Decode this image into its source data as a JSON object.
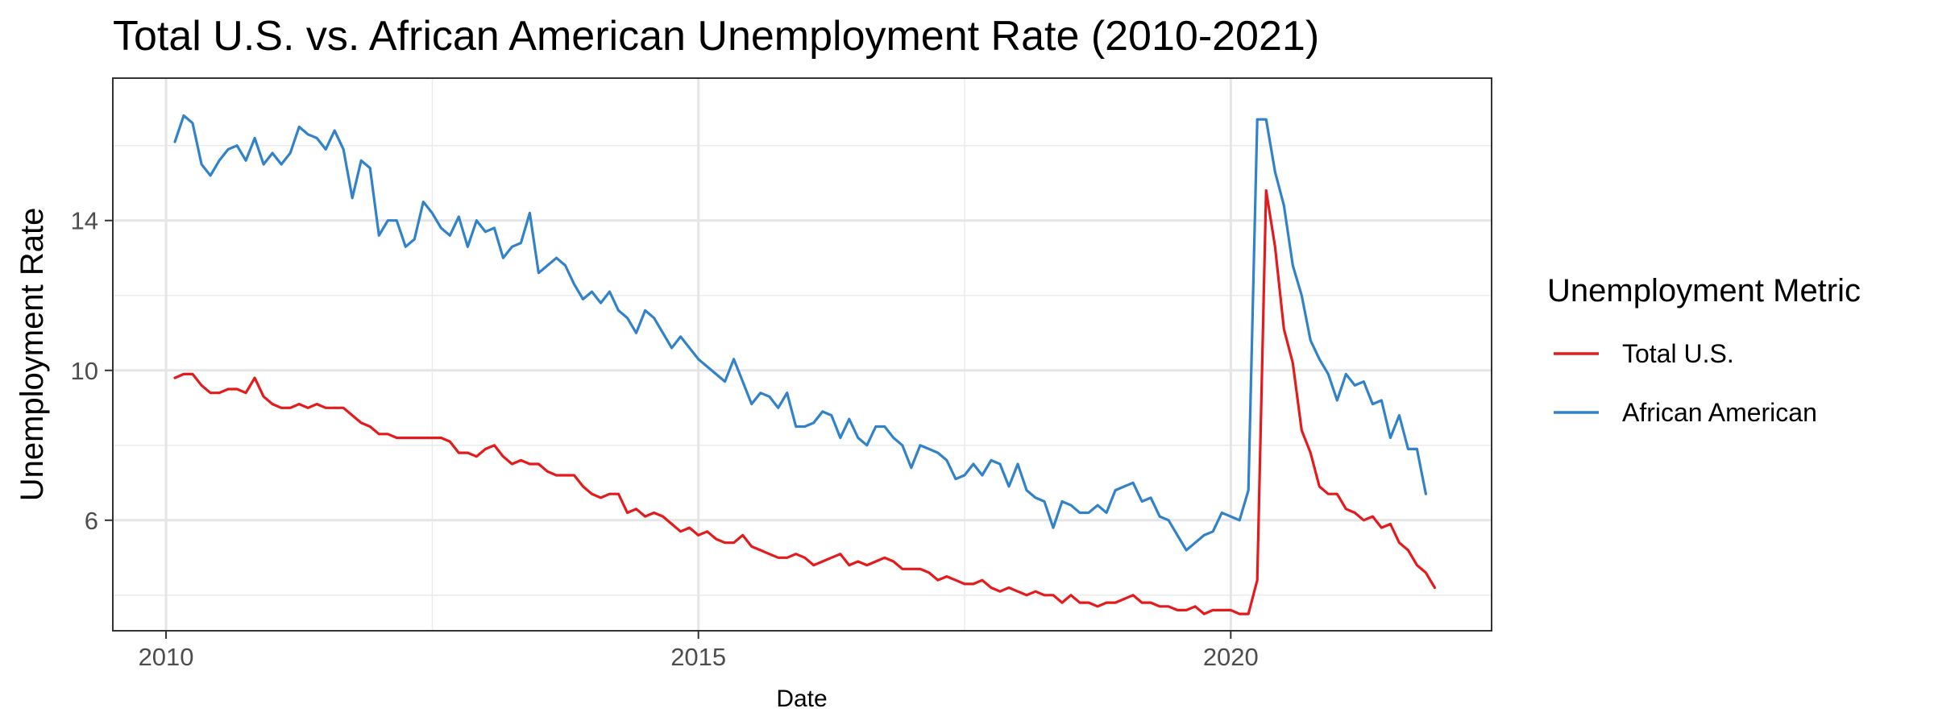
{
  "chart_data": {
    "type": "line",
    "title": "Total U.S. vs. African American Unemployment Rate (2010-2021)",
    "xlabel": "Date",
    "ylabel": "Unemployment Rate",
    "xlim": [
      2009.5,
      2022.45
    ],
    "ylim": [
      3.05,
      17.8
    ],
    "x_ticks": [
      2010,
      2015,
      2020
    ],
    "x_tick_labels": [
      "2010",
      "2015",
      "2020"
    ],
    "x_minor_ticks": [
      2012.5,
      2017.5
    ],
    "y_ticks": [
      6,
      10,
      14
    ],
    "y_tick_labels": [
      "6",
      "10",
      "14"
    ],
    "y_minor_ticks": [
      4,
      8,
      12,
      16
    ],
    "grid": true,
    "legend": {
      "title": "Unemployment Metric",
      "position": "right",
      "entries": [
        "Total U.S.",
        "African American"
      ]
    },
    "x_start": 2010.083,
    "x_step": 0.08333,
    "series": [
      {
        "name": "Total U.S.",
        "color": "#E41A1C",
        "values": [
          9.8,
          9.9,
          9.9,
          9.6,
          9.4,
          9.4,
          9.5,
          9.5,
          9.4,
          9.8,
          9.3,
          9.1,
          9.0,
          9.0,
          9.1,
          9.0,
          9.1,
          9.0,
          9.0,
          9.0,
          8.8,
          8.6,
          8.5,
          8.3,
          8.3,
          8.2,
          8.2,
          8.2,
          8.2,
          8.2,
          8.2,
          8.1,
          7.8,
          7.8,
          7.7,
          7.9,
          8.0,
          7.7,
          7.5,
          7.6,
          7.5,
          7.5,
          7.3,
          7.2,
          7.2,
          7.2,
          6.9,
          6.7,
          6.6,
          6.7,
          6.7,
          6.2,
          6.3,
          6.1,
          6.2,
          6.1,
          5.9,
          5.7,
          5.8,
          5.6,
          5.7,
          5.5,
          5.4,
          5.4,
          5.6,
          5.3,
          5.2,
          5.1,
          5.0,
          5.0,
          5.1,
          5.0,
          4.8,
          4.9,
          5.0,
          5.1,
          4.8,
          4.9,
          4.8,
          4.9,
          5.0,
          4.9,
          4.7,
          4.7,
          4.7,
          4.6,
          4.4,
          4.5,
          4.4,
          4.3,
          4.3,
          4.4,
          4.2,
          4.1,
          4.2,
          4.1,
          4.0,
          4.1,
          4.0,
          4.0,
          3.8,
          4.0,
          3.8,
          3.8,
          3.7,
          3.8,
          3.8,
          3.9,
          4.0,
          3.8,
          3.8,
          3.7,
          3.7,
          3.6,
          3.6,
          3.7,
          3.5,
          3.6,
          3.6,
          3.6,
          3.5,
          3.5,
          4.4,
          14.8,
          13.3,
          11.1,
          10.2,
          8.4,
          7.8,
          6.9,
          6.7,
          6.7,
          6.3,
          6.2,
          6.0,
          6.1,
          5.8,
          5.9,
          5.4,
          5.2,
          4.8,
          4.6,
          4.2
        ]
      },
      {
        "name": "African American",
        "color": "#3182C8",
        "values": [
          16.1,
          16.8,
          16.6,
          15.5,
          15.2,
          15.6,
          15.9,
          16.0,
          15.6,
          16.2,
          15.5,
          15.8,
          15.5,
          15.8,
          16.5,
          16.3,
          16.2,
          15.9,
          16.4,
          15.9,
          14.6,
          15.6,
          15.4,
          13.6,
          14.0,
          14.0,
          13.3,
          13.5,
          14.5,
          14.2,
          13.8,
          13.6,
          14.1,
          13.3,
          14.0,
          13.7,
          13.8,
          13.0,
          13.3,
          13.4,
          14.2,
          12.6,
          12.8,
          13.0,
          12.8,
          12.3,
          11.9,
          12.1,
          11.8,
          12.1,
          11.6,
          11.4,
          11.0,
          11.6,
          11.4,
          11.0,
          10.6,
          10.9,
          10.6,
          10.3,
          10.1,
          9.9,
          9.7,
          10.3,
          9.7,
          9.1,
          9.4,
          9.3,
          9.0,
          9.4,
          8.5,
          8.5,
          8.6,
          8.9,
          8.8,
          8.2,
          8.7,
          8.2,
          8.0,
          8.5,
          8.5,
          8.2,
          8.0,
          7.4,
          8.0,
          7.9,
          7.8,
          7.6,
          7.1,
          7.2,
          7.5,
          7.2,
          7.6,
          7.5,
          6.9,
          7.5,
          6.8,
          6.6,
          6.5,
          5.8,
          6.5,
          6.4,
          6.2,
          6.2,
          6.4,
          6.2,
          6.8,
          6.9,
          7.0,
          6.5,
          6.6,
          6.1,
          6.0,
          5.6,
          5.2,
          5.4,
          5.6,
          5.7,
          6.2,
          6.1,
          6.0,
          6.8,
          16.7,
          16.7,
          15.3,
          14.4,
          12.8,
          12.0,
          10.8,
          10.3,
          9.9,
          9.2,
          9.9,
          9.6,
          9.7,
          9.1,
          9.2,
          8.2,
          8.8,
          7.9,
          7.9,
          6.7
        ]
      }
    ]
  }
}
